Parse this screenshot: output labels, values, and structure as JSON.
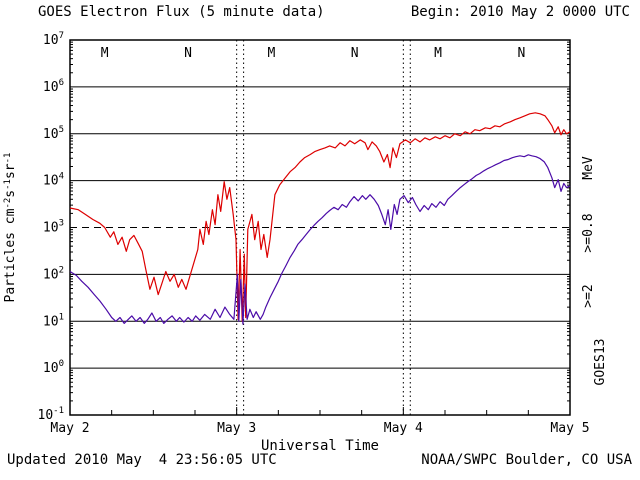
{
  "header": {
    "title": "GOES Electron Flux (5 minute data)",
    "begin": "Begin: 2010 May 2 0000 UTC"
  },
  "footer": {
    "updated": "Updated 2010 May  4 23:56:05 UTC",
    "source": "NOAA/SWPC Boulder, CO USA"
  },
  "colors": {
    "red": "#dd0000",
    "purple": "#4b0ca8",
    "axis": "#000000",
    "background": "#ffffff"
  },
  "chart_data": {
    "type": "line",
    "title": "GOES Electron Flux (5 minute data)",
    "xlabel": "Universal Time",
    "ylabel": "Particles cm⁻²s⁻¹sr⁻¹",
    "ylabel_parts": [
      {
        "text": "Particles cm",
        "sup": false
      },
      {
        "text": "-2",
        "sup": true
      },
      {
        "text": "s",
        "sup": false
      },
      {
        "text": "-1",
        "sup": true
      },
      {
        "text": "sr",
        "sup": false
      },
      {
        "text": "-1",
        "sup": true
      }
    ],
    "x_unit": "hours since 2010 May 2 0000 UTC",
    "xlim_hours": [
      0,
      72
    ],
    "ylog10_range": [
      -1,
      7
    ],
    "x_ticks": [
      {
        "hours": 0,
        "label": "May 2"
      },
      {
        "hours": 24,
        "label": "May 3"
      },
      {
        "hours": 48,
        "label": "May 4"
      },
      {
        "hours": 72,
        "label": "May 5"
      }
    ],
    "y_tick_exponents": [
      -1,
      0,
      1,
      2,
      3,
      4,
      5,
      6,
      7
    ],
    "solid_hgrid_exponents": [
      0,
      1,
      2,
      4,
      5,
      6
    ],
    "dashed_threshold_flux": 1000,
    "dotted_vlines_hours": [
      24,
      25,
      48,
      49
    ],
    "marker_color": "#dd0000",
    "local_time_markers": [
      {
        "hours": 5,
        "label": "M"
      },
      {
        "hours": 17,
        "label": "N"
      },
      {
        "hours": 29,
        "label": "M"
      },
      {
        "hours": 41,
        "label": "N"
      },
      {
        "hours": 53,
        "label": "M"
      },
      {
        "hours": 65,
        "label": "N"
      }
    ],
    "right_axis_labels": [
      {
        "text": ">=2",
        "color": "#4b0ca8"
      },
      {
        "text": ">=0.8",
        "color": "#dd0000"
      },
      {
        "text": "MeV",
        "color": "#000000"
      }
    ],
    "satellite_label": "GOES13",
    "legend_position": "right-margin-rotated",
    "grid": "solid horizontal per decade, dashed at 1e3, dotted vertical at day boundaries",
    "series": [
      {
        "name": ">=0.8 MeV",
        "color": "#dd0000",
        "points": [
          [
            0,
            2600
          ],
          [
            1.2,
            2400
          ],
          [
            2.2,
            1900
          ],
          [
            3.3,
            1480
          ],
          [
            4.3,
            1230
          ],
          [
            5,
            1000
          ],
          [
            5.8,
            620
          ],
          [
            6.3,
            810
          ],
          [
            6.9,
            435
          ],
          [
            7.5,
            620
          ],
          [
            8.1,
            310
          ],
          [
            8.6,
            550
          ],
          [
            9.2,
            680
          ],
          [
            9.8,
            460
          ],
          [
            10.4,
            310
          ],
          [
            10.9,
            130
          ],
          [
            11.5,
            48
          ],
          [
            12.1,
            87
          ],
          [
            12.7,
            37
          ],
          [
            13.2,
            62
          ],
          [
            13.8,
            115
          ],
          [
            14.4,
            71
          ],
          [
            15,
            100
          ],
          [
            15.6,
            53
          ],
          [
            16.1,
            78
          ],
          [
            16.7,
            48
          ],
          [
            17.3,
            95
          ],
          [
            17.9,
            190
          ],
          [
            18.4,
            340
          ],
          [
            18.7,
            910
          ],
          [
            19.2,
            435
          ],
          [
            19.6,
            1350
          ],
          [
            20,
            710
          ],
          [
            20.5,
            2400
          ],
          [
            20.9,
            1150
          ],
          [
            21.3,
            5000
          ],
          [
            21.7,
            2200
          ],
          [
            22.2,
            9500
          ],
          [
            22.6,
            4000
          ],
          [
            23,
            7100
          ],
          [
            23.5,
            1900
          ],
          [
            23.9,
            550
          ],
          [
            24.2,
            11
          ],
          [
            24.5,
            340
          ],
          [
            24.8,
            10
          ],
          [
            25.1,
            270
          ],
          [
            25.3,
            12
          ],
          [
            25.6,
            910
          ],
          [
            26.2,
            1900
          ],
          [
            26.6,
            550
          ],
          [
            27.1,
            1350
          ],
          [
            27.5,
            340
          ],
          [
            27.9,
            710
          ],
          [
            28.4,
            230
          ],
          [
            28.8,
            550
          ],
          [
            29.5,
            5000
          ],
          [
            30.2,
            8100
          ],
          [
            31,
            11500
          ],
          [
            31.7,
            15500
          ],
          [
            32.4,
            19000
          ],
          [
            33.1,
            25000
          ],
          [
            33.8,
            31000
          ],
          [
            34.6,
            36000
          ],
          [
            35.3,
            42000
          ],
          [
            36,
            46000
          ],
          [
            36.7,
            50000
          ],
          [
            37.4,
            55000
          ],
          [
            38.2,
            50000
          ],
          [
            38.9,
            64000
          ],
          [
            39.6,
            55000
          ],
          [
            40.3,
            71000
          ],
          [
            41,
            61000
          ],
          [
            41.8,
            74000
          ],
          [
            42.5,
            64000
          ],
          [
            42.9,
            46000
          ],
          [
            43.5,
            67000
          ],
          [
            44.1,
            55000
          ],
          [
            44.6,
            42000
          ],
          [
            45.2,
            25000
          ],
          [
            45.7,
            36000
          ],
          [
            46.1,
            19000
          ],
          [
            46.5,
            50000
          ],
          [
            47,
            31000
          ],
          [
            47.5,
            61000
          ],
          [
            48.3,
            74000
          ],
          [
            49,
            64000
          ],
          [
            49.7,
            78000
          ],
          [
            50.4,
            67000
          ],
          [
            51.1,
            82000
          ],
          [
            51.8,
            74000
          ],
          [
            52.6,
            86000
          ],
          [
            53.3,
            78000
          ],
          [
            54,
            91000
          ],
          [
            54.7,
            82000
          ],
          [
            55.4,
            100000
          ],
          [
            56.2,
            91000
          ],
          [
            56.9,
            110000
          ],
          [
            57.6,
            100000
          ],
          [
            58.3,
            122000
          ],
          [
            59,
            116000
          ],
          [
            59.8,
            134000
          ],
          [
            60.5,
            128000
          ],
          [
            61.2,
            148000
          ],
          [
            61.9,
            141000
          ],
          [
            62.6,
            163000
          ],
          [
            63.4,
            180000
          ],
          [
            64.1,
            200000
          ],
          [
            64.8,
            219000
          ],
          [
            65.5,
            241000
          ],
          [
            66.2,
            267000
          ],
          [
            67,
            280000
          ],
          [
            67.7,
            267000
          ],
          [
            68.4,
            241000
          ],
          [
            68.8,
            200000
          ],
          [
            69.4,
            148000
          ],
          [
            69.8,
            105000
          ],
          [
            70.3,
            141000
          ],
          [
            70.7,
            95000
          ],
          [
            71.1,
            122000
          ],
          [
            71.5,
            100000
          ],
          [
            72,
            110000
          ]
        ]
      },
      {
        "name": ">=2 MeV",
        "color": "#4b0ca8",
        "points": [
          [
            0,
            115
          ],
          [
            0.9,
            95
          ],
          [
            1.7,
            71
          ],
          [
            2.6,
            53
          ],
          [
            3.5,
            37
          ],
          [
            4.3,
            27
          ],
          [
            5.2,
            18
          ],
          [
            6,
            12
          ],
          [
            6.6,
            10
          ],
          [
            7.2,
            12
          ],
          [
            7.8,
            9
          ],
          [
            8.4,
            11
          ],
          [
            8.9,
            13
          ],
          [
            9.5,
            10
          ],
          [
            10.1,
            12
          ],
          [
            10.7,
            9
          ],
          [
            11.2,
            11
          ],
          [
            11.8,
            15
          ],
          [
            12.4,
            10
          ],
          [
            13,
            12
          ],
          [
            13.5,
            9
          ],
          [
            14.1,
            11
          ],
          [
            14.7,
            13
          ],
          [
            15.3,
            10
          ],
          [
            15.8,
            12
          ],
          [
            16.4,
            9.6
          ],
          [
            17,
            12
          ],
          [
            17.6,
            10
          ],
          [
            18.1,
            13
          ],
          [
            18.7,
            10.5
          ],
          [
            19.4,
            14
          ],
          [
            20.2,
            11
          ],
          [
            20.9,
            18
          ],
          [
            21.6,
            12
          ],
          [
            22.3,
            20
          ],
          [
            23,
            14
          ],
          [
            23.6,
            11
          ],
          [
            24.1,
            100
          ],
          [
            24.3,
            10
          ],
          [
            24.6,
            78
          ],
          [
            24.9,
            8.7
          ],
          [
            25.2,
            62
          ],
          [
            25.5,
            11
          ],
          [
            25.9,
            18
          ],
          [
            26.4,
            12
          ],
          [
            26.8,
            16
          ],
          [
            27.4,
            11
          ],
          [
            27.8,
            14
          ],
          [
            28.2,
            20
          ],
          [
            28.8,
            32
          ],
          [
            29.4,
            48
          ],
          [
            30,
            71
          ],
          [
            30.5,
            105
          ],
          [
            31.1,
            155
          ],
          [
            31.7,
            230
          ],
          [
            32.3,
            320
          ],
          [
            32.8,
            435
          ],
          [
            33.4,
            550
          ],
          [
            34,
            710
          ],
          [
            34.6,
            910
          ],
          [
            35.1,
            1100
          ],
          [
            35.7,
            1350
          ],
          [
            36.3,
            1620
          ],
          [
            36.9,
            2000
          ],
          [
            37.4,
            2300
          ],
          [
            38,
            2700
          ],
          [
            38.6,
            2400
          ],
          [
            39.2,
            3100
          ],
          [
            39.8,
            2700
          ],
          [
            40.3,
            3550
          ],
          [
            40.9,
            4570
          ],
          [
            41.5,
            3700
          ],
          [
            42.1,
            4790
          ],
          [
            42.6,
            4000
          ],
          [
            43.2,
            5000
          ],
          [
            43.8,
            4000
          ],
          [
            44.4,
            2950
          ],
          [
            44.9,
            1900
          ],
          [
            45.4,
            1150
          ],
          [
            45.8,
            2400
          ],
          [
            46.2,
            910
          ],
          [
            46.7,
            3100
          ],
          [
            47.1,
            1900
          ],
          [
            47.5,
            4000
          ],
          [
            48.1,
            4790
          ],
          [
            48.7,
            3390
          ],
          [
            49.3,
            4370
          ],
          [
            49.8,
            3100
          ],
          [
            50.4,
            2190
          ],
          [
            51,
            2950
          ],
          [
            51.6,
            2400
          ],
          [
            52.1,
            3240
          ],
          [
            52.7,
            2700
          ],
          [
            53.3,
            3550
          ],
          [
            53.9,
            2950
          ],
          [
            54.4,
            4000
          ],
          [
            55,
            4790
          ],
          [
            55.6,
            5890
          ],
          [
            56.2,
            7100
          ],
          [
            56.7,
            8130
          ],
          [
            57.3,
            9550
          ],
          [
            57.9,
            11000
          ],
          [
            58.5,
            12900
          ],
          [
            59,
            14100
          ],
          [
            59.6,
            16200
          ],
          [
            60.2,
            18200
          ],
          [
            60.8,
            20000
          ],
          [
            61.3,
            21900
          ],
          [
            61.9,
            24000
          ],
          [
            62.5,
            26900
          ],
          [
            63.1,
            28200
          ],
          [
            63.7,
            30900
          ],
          [
            64.2,
            32400
          ],
          [
            64.8,
            33900
          ],
          [
            65.4,
            32400
          ],
          [
            66,
            35500
          ],
          [
            66.5,
            33900
          ],
          [
            67.1,
            32400
          ],
          [
            67.7,
            29500
          ],
          [
            68.3,
            25100
          ],
          [
            68.8,
            19000
          ],
          [
            69.4,
            11500
          ],
          [
            69.8,
            7100
          ],
          [
            70.3,
            10500
          ],
          [
            70.7,
            5890
          ],
          [
            71.1,
            8710
          ],
          [
            71.5,
            7100
          ],
          [
            72,
            7760
          ]
        ]
      }
    ]
  }
}
